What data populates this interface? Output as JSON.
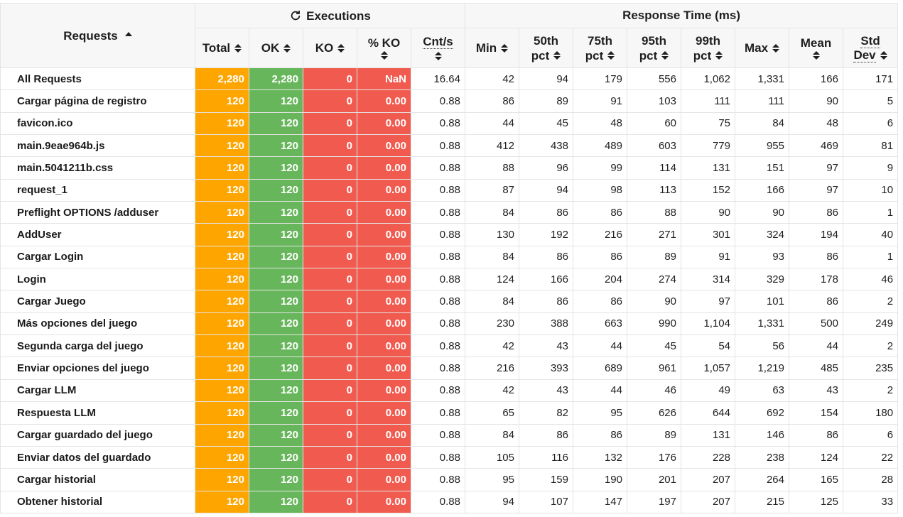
{
  "header": {
    "requests_label": "Requests",
    "executions_label": "Executions",
    "response_time_label": "Response Time (ms)",
    "columns": {
      "total": "Total",
      "ok": "OK",
      "ko": "KO",
      "pko": "% KO",
      "cnt": "Cnt/s",
      "min": "Min",
      "p50_a": "50th",
      "p50_b": "pct",
      "p75_a": "75th",
      "p75_b": "pct",
      "p95_a": "95th",
      "p95_b": "pct",
      "p99_a": "99th",
      "p99_b": "pct",
      "max": "Max",
      "mean": "Mean",
      "std_a": "Std",
      "std_b": "Dev"
    }
  },
  "colors": {
    "total": "#ffa500",
    "ok": "#68b65c",
    "ko": "#f15b4f"
  },
  "rows": [
    {
      "name": "All Requests",
      "total": "2,280",
      "ok": "2,280",
      "ko": "0",
      "pko": "NaN",
      "cnt": "16.64",
      "min": "42",
      "p50": "94",
      "p75": "179",
      "p95": "556",
      "p99": "1,062",
      "max": "1,331",
      "mean": "166",
      "std": "171"
    },
    {
      "name": "Cargar página de registro",
      "total": "120",
      "ok": "120",
      "ko": "0",
      "pko": "0.00",
      "cnt": "0.88",
      "min": "86",
      "p50": "89",
      "p75": "91",
      "p95": "103",
      "p99": "111",
      "max": "111",
      "mean": "90",
      "std": "5"
    },
    {
      "name": "favicon.ico",
      "total": "120",
      "ok": "120",
      "ko": "0",
      "pko": "0.00",
      "cnt": "0.88",
      "min": "44",
      "p50": "45",
      "p75": "48",
      "p95": "60",
      "p99": "75",
      "max": "84",
      "mean": "48",
      "std": "6"
    },
    {
      "name": "main.9eae964b.js",
      "total": "120",
      "ok": "120",
      "ko": "0",
      "pko": "0.00",
      "cnt": "0.88",
      "min": "412",
      "p50": "438",
      "p75": "489",
      "p95": "603",
      "p99": "779",
      "max": "955",
      "mean": "469",
      "std": "81"
    },
    {
      "name": "main.5041211b.css",
      "total": "120",
      "ok": "120",
      "ko": "0",
      "pko": "0.00",
      "cnt": "0.88",
      "min": "88",
      "p50": "96",
      "p75": "99",
      "p95": "114",
      "p99": "131",
      "max": "151",
      "mean": "97",
      "std": "9"
    },
    {
      "name": "request_1",
      "total": "120",
      "ok": "120",
      "ko": "0",
      "pko": "0.00",
      "cnt": "0.88",
      "min": "87",
      "p50": "94",
      "p75": "98",
      "p95": "113",
      "p99": "152",
      "max": "166",
      "mean": "97",
      "std": "10"
    },
    {
      "name": "Preflight OPTIONS /adduser",
      "total": "120",
      "ok": "120",
      "ko": "0",
      "pko": "0.00",
      "cnt": "0.88",
      "min": "84",
      "p50": "86",
      "p75": "86",
      "p95": "88",
      "p99": "90",
      "max": "90",
      "mean": "86",
      "std": "1"
    },
    {
      "name": "AddUser",
      "total": "120",
      "ok": "120",
      "ko": "0",
      "pko": "0.00",
      "cnt": "0.88",
      "min": "130",
      "p50": "192",
      "p75": "216",
      "p95": "271",
      "p99": "301",
      "max": "324",
      "mean": "194",
      "std": "40"
    },
    {
      "name": "Cargar Login",
      "total": "120",
      "ok": "120",
      "ko": "0",
      "pko": "0.00",
      "cnt": "0.88",
      "min": "84",
      "p50": "86",
      "p75": "86",
      "p95": "89",
      "p99": "91",
      "max": "93",
      "mean": "86",
      "std": "1"
    },
    {
      "name": "Login",
      "total": "120",
      "ok": "120",
      "ko": "0",
      "pko": "0.00",
      "cnt": "0.88",
      "min": "124",
      "p50": "166",
      "p75": "204",
      "p95": "274",
      "p99": "314",
      "max": "329",
      "mean": "178",
      "std": "46"
    },
    {
      "name": "Cargar Juego",
      "total": "120",
      "ok": "120",
      "ko": "0",
      "pko": "0.00",
      "cnt": "0.88",
      "min": "84",
      "p50": "86",
      "p75": "86",
      "p95": "90",
      "p99": "97",
      "max": "101",
      "mean": "86",
      "std": "2"
    },
    {
      "name": "Más opciones del juego",
      "total": "120",
      "ok": "120",
      "ko": "0",
      "pko": "0.00",
      "cnt": "0.88",
      "min": "230",
      "p50": "388",
      "p75": "663",
      "p95": "990",
      "p99": "1,104",
      "max": "1,331",
      "mean": "500",
      "std": "249"
    },
    {
      "name": "Segunda carga del juego",
      "total": "120",
      "ok": "120",
      "ko": "0",
      "pko": "0.00",
      "cnt": "0.88",
      "min": "42",
      "p50": "43",
      "p75": "44",
      "p95": "45",
      "p99": "54",
      "max": "56",
      "mean": "44",
      "std": "2"
    },
    {
      "name": "Enviar opciones del juego",
      "total": "120",
      "ok": "120",
      "ko": "0",
      "pko": "0.00",
      "cnt": "0.88",
      "min": "216",
      "p50": "393",
      "p75": "689",
      "p95": "961",
      "p99": "1,057",
      "max": "1,219",
      "mean": "485",
      "std": "235"
    },
    {
      "name": "Cargar LLM",
      "total": "120",
      "ok": "120",
      "ko": "0",
      "pko": "0.00",
      "cnt": "0.88",
      "min": "42",
      "p50": "43",
      "p75": "44",
      "p95": "46",
      "p99": "49",
      "max": "63",
      "mean": "43",
      "std": "2"
    },
    {
      "name": "Respuesta LLM",
      "total": "120",
      "ok": "120",
      "ko": "0",
      "pko": "0.00",
      "cnt": "0.88",
      "min": "65",
      "p50": "82",
      "p75": "95",
      "p95": "626",
      "p99": "644",
      "max": "692",
      "mean": "154",
      "std": "180"
    },
    {
      "name": "Cargar guardado del juego",
      "total": "120",
      "ok": "120",
      "ko": "0",
      "pko": "0.00",
      "cnt": "0.88",
      "min": "84",
      "p50": "86",
      "p75": "86",
      "p95": "89",
      "p99": "131",
      "max": "146",
      "mean": "86",
      "std": "6"
    },
    {
      "name": "Enviar datos del guardado",
      "total": "120",
      "ok": "120",
      "ko": "0",
      "pko": "0.00",
      "cnt": "0.88",
      "min": "105",
      "p50": "116",
      "p75": "132",
      "p95": "176",
      "p99": "228",
      "max": "238",
      "mean": "124",
      "std": "22"
    },
    {
      "name": "Cargar historial",
      "total": "120",
      "ok": "120",
      "ko": "0",
      "pko": "0.00",
      "cnt": "0.88",
      "min": "95",
      "p50": "159",
      "p75": "190",
      "p95": "201",
      "p99": "207",
      "max": "264",
      "mean": "165",
      "std": "28"
    },
    {
      "name": "Obtener historial",
      "total": "120",
      "ok": "120",
      "ko": "0",
      "pko": "0.00",
      "cnt": "0.88",
      "min": "94",
      "p50": "107",
      "p75": "147",
      "p95": "197",
      "p99": "207",
      "max": "215",
      "mean": "125",
      "std": "33"
    }
  ]
}
